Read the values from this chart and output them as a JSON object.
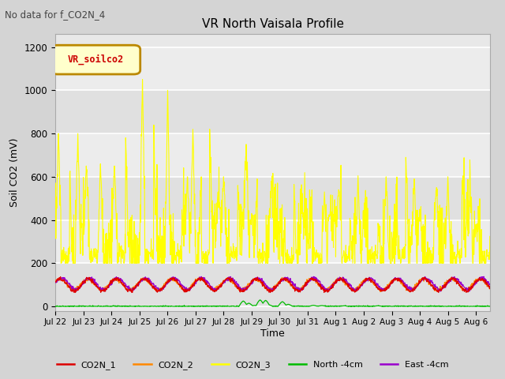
{
  "title": "VR North Vaisala Profile",
  "subtitle": "No data for f_CO2N_4",
  "ylabel": "Soil CO2 (mV)",
  "xlabel": "Time",
  "legend_box_label": "VR_soilco2",
  "ylim": [
    -20,
    1260
  ],
  "yticks": [
    0,
    200,
    400,
    600,
    800,
    1000,
    1200
  ],
  "fig_bg_color": "#d4d4d4",
  "plot_bg_color": "#e8e8e8",
  "alt_band_color": "#d8d8d8",
  "series_colors": {
    "CO2N_1": "#dd0000",
    "CO2N_2": "#ff8800",
    "CO2N_3": "#ffff00",
    "North_4cm": "#00bb00",
    "East_4cm": "#9900cc"
  },
  "legend_labels": [
    "CO2N_1",
    "CO2N_2",
    "CO2N_3",
    "North -4cm",
    "East -4cm"
  ],
  "n_points": 1500,
  "start_day": 0,
  "end_day": 15.5,
  "x_tick_positions": [
    0,
    1,
    2,
    3,
    4,
    5,
    6,
    7,
    8,
    9,
    10,
    11,
    12,
    13,
    14,
    15
  ],
  "x_tick_labels": [
    "Jul 22",
    "Jul 23",
    "Jul 24",
    "Jul 25",
    "Jul 26",
    "Jul 27",
    "Jul 28",
    "Jul 29",
    "Jul 30",
    "Jul 31",
    "Aug 1",
    "Aug 2",
    "Aug 3",
    "Aug 4",
    "Aug 5",
    "Aug 6"
  ]
}
